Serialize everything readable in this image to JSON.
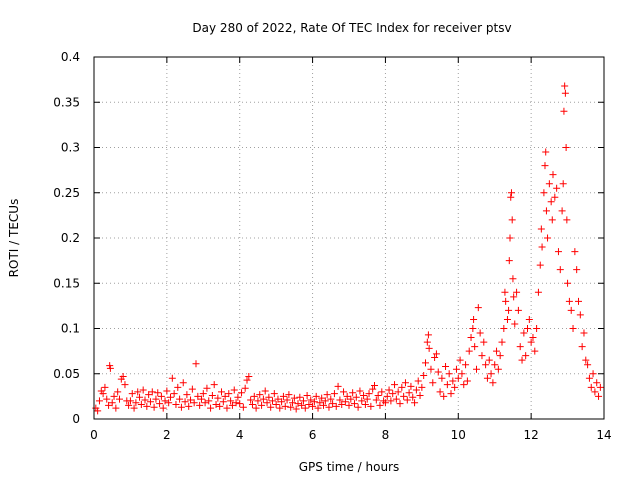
{
  "chart_data": {
    "type": "scatter",
    "title": "Day 280 of 2022, Rate Of TEC Index for receiver ptsv",
    "xlabel": "GPS time / hours",
    "ylabel": "ROTI / TECUs",
    "xlim": [
      0,
      14
    ],
    "ylim": [
      0,
      0.4
    ],
    "x_ticks": [
      "0",
      "2",
      "4",
      "6",
      "8",
      "10",
      "12",
      "14"
    ],
    "y_ticks": [
      "0",
      "0.05",
      "0.1",
      "0.15",
      "0.2",
      "0.25",
      "0.3",
      "0.35",
      "0.4"
    ],
    "grid": true,
    "legend": "none",
    "marker": "plus",
    "color": "#ff0000",
    "series": [
      {
        "points": [
          [
            0.05,
            0.012
          ],
          [
            0.1,
            0.009
          ],
          [
            0.15,
            0.02
          ],
          [
            0.2,
            0.031
          ],
          [
            0.25,
            0.028
          ],
          [
            0.3,
            0.035
          ],
          [
            0.35,
            0.022
          ],
          [
            0.4,
            0.015
          ],
          [
            0.43,
            0.059
          ],
          [
            0.45,
            0.056
          ],
          [
            0.5,
            0.018
          ],
          [
            0.55,
            0.025
          ],
          [
            0.6,
            0.012
          ],
          [
            0.65,
            0.03
          ],
          [
            0.7,
            0.022
          ],
          [
            0.75,
            0.044
          ],
          [
            0.8,
            0.047
          ],
          [
            0.85,
            0.038
          ],
          [
            0.9,
            0.02
          ],
          [
            0.95,
            0.015
          ],
          [
            1.0,
            0.02
          ],
          [
            1.05,
            0.028
          ],
          [
            1.1,
            0.012
          ],
          [
            1.15,
            0.018
          ],
          [
            1.2,
            0.03
          ],
          [
            1.25,
            0.024
          ],
          [
            1.3,
            0.016
          ],
          [
            1.35,
            0.032
          ],
          [
            1.4,
            0.021
          ],
          [
            1.45,
            0.014
          ],
          [
            1.5,
            0.027
          ],
          [
            1.55,
            0.019
          ],
          [
            1.6,
            0.03
          ],
          [
            1.65,
            0.013
          ],
          [
            1.7,
            0.022
          ],
          [
            1.75,
            0.029
          ],
          [
            1.8,
            0.017
          ],
          [
            1.85,
            0.025
          ],
          [
            1.9,
            0.012
          ],
          [
            1.95,
            0.02
          ],
          [
            2.0,
            0.031
          ],
          [
            2.05,
            0.018
          ],
          [
            2.1,
            0.024
          ],
          [
            2.15,
            0.045
          ],
          [
            2.2,
            0.028
          ],
          [
            2.25,
            0.016
          ],
          [
            2.3,
            0.035
          ],
          [
            2.35,
            0.022
          ],
          [
            2.4,
            0.013
          ],
          [
            2.45,
            0.04
          ],
          [
            2.5,
            0.019
          ],
          [
            2.55,
            0.027
          ],
          [
            2.6,
            0.014
          ],
          [
            2.65,
            0.021
          ],
          [
            2.7,
            0.033
          ],
          [
            2.75,
            0.018
          ],
          [
            2.8,
            0.061
          ],
          [
            2.85,
            0.025
          ],
          [
            2.9,
            0.015
          ],
          [
            2.95,
            0.022
          ],
          [
            3.0,
            0.028
          ],
          [
            3.05,
            0.018
          ],
          [
            3.1,
            0.034
          ],
          [
            3.15,
            0.02
          ],
          [
            3.2,
            0.012
          ],
          [
            3.25,
            0.026
          ],
          [
            3.3,
            0.038
          ],
          [
            3.35,
            0.016
          ],
          [
            3.4,
            0.023
          ],
          [
            3.45,
            0.014
          ],
          [
            3.5,
            0.03
          ],
          [
            3.55,
            0.019
          ],
          [
            3.6,
            0.025
          ],
          [
            3.65,
            0.012
          ],
          [
            3.7,
            0.028
          ],
          [
            3.75,
            0.02
          ],
          [
            3.8,
            0.015
          ],
          [
            3.85,
            0.032
          ],
          [
            3.9,
            0.018
          ],
          [
            3.95,
            0.024
          ],
          [
            4.0,
            0.017
          ],
          [
            4.05,
            0.029
          ],
          [
            4.1,
            0.013
          ],
          [
            4.15,
            0.034
          ],
          [
            4.2,
            0.043
          ],
          [
            4.25,
            0.047
          ],
          [
            4.3,
            0.021
          ],
          [
            4.35,
            0.016
          ],
          [
            4.4,
            0.025
          ],
          [
            4.45,
            0.012
          ],
          [
            4.5,
            0.02
          ],
          [
            4.55,
            0.027
          ],
          [
            4.6,
            0.015
          ],
          [
            4.65,
            0.022
          ],
          [
            4.7,
            0.031
          ],
          [
            4.75,
            0.018
          ],
          [
            4.8,
            0.024
          ],
          [
            4.85,
            0.013
          ],
          [
            4.9,
            0.02
          ],
          [
            4.95,
            0.028
          ],
          [
            5.0,
            0.016
          ],
          [
            5.05,
            0.022
          ],
          [
            5.1,
            0.012
          ],
          [
            5.15,
            0.019
          ],
          [
            5.2,
            0.025
          ],
          [
            5.25,
            0.014
          ],
          [
            5.3,
            0.021
          ],
          [
            5.35,
            0.027
          ],
          [
            5.4,
            0.013
          ],
          [
            5.45,
            0.018
          ],
          [
            5.5,
            0.023
          ],
          [
            5.55,
            0.011
          ],
          [
            5.6,
            0.017
          ],
          [
            5.65,
            0.024
          ],
          [
            5.7,
            0.015
          ],
          [
            5.75,
            0.02
          ],
          [
            5.8,
            0.012
          ],
          [
            5.85,
            0.026
          ],
          [
            5.9,
            0.016
          ],
          [
            5.95,
            0.021
          ],
          [
            6.0,
            0.014
          ],
          [
            6.05,
            0.019
          ],
          [
            6.1,
            0.025
          ],
          [
            6.15,
            0.012
          ],
          [
            6.2,
            0.018
          ],
          [
            6.25,
            0.023
          ],
          [
            6.3,
            0.015
          ],
          [
            6.35,
            0.02
          ],
          [
            6.4,
            0.027
          ],
          [
            6.45,
            0.013
          ],
          [
            6.5,
            0.022
          ],
          [
            6.55,
            0.017
          ],
          [
            6.6,
            0.028
          ],
          [
            6.65,
            0.014
          ],
          [
            6.7,
            0.036
          ],
          [
            6.75,
            0.021
          ],
          [
            6.8,
            0.016
          ],
          [
            6.85,
            0.03
          ],
          [
            6.9,
            0.019
          ],
          [
            6.95,
            0.025
          ],
          [
            7.0,
            0.015
          ],
          [
            7.05,
            0.022
          ],
          [
            7.1,
            0.029
          ],
          [
            7.15,
            0.017
          ],
          [
            7.2,
            0.024
          ],
          [
            7.25,
            0.013
          ],
          [
            7.3,
            0.031
          ],
          [
            7.35,
            0.02
          ],
          [
            7.4,
            0.026
          ],
          [
            7.45,
            0.016
          ],
          [
            7.5,
            0.022
          ],
          [
            7.55,
            0.028
          ],
          [
            7.6,
            0.014
          ],
          [
            7.65,
            0.033
          ],
          [
            7.7,
            0.037
          ],
          [
            7.75,
            0.021
          ],
          [
            7.8,
            0.026
          ],
          [
            7.85,
            0.015
          ],
          [
            7.9,
            0.03
          ],
          [
            7.95,
            0.02
          ],
          [
            8.0,
            0.018
          ],
          [
            8.05,
            0.025
          ],
          [
            8.1,
            0.032
          ],
          [
            8.15,
            0.02
          ],
          [
            8.2,
            0.028
          ],
          [
            8.25,
            0.038
          ],
          [
            8.3,
            0.022
          ],
          [
            8.35,
            0.03
          ],
          [
            8.4,
            0.017
          ],
          [
            8.45,
            0.035
          ],
          [
            8.5,
            0.025
          ],
          [
            8.55,
            0.04
          ],
          [
            8.6,
            0.021
          ],
          [
            8.65,
            0.029
          ],
          [
            8.7,
            0.036
          ],
          [
            8.75,
            0.024
          ],
          [
            8.8,
            0.018
          ],
          [
            8.85,
            0.032
          ],
          [
            8.9,
            0.042
          ],
          [
            8.95,
            0.026
          ],
          [
            9.0,
            0.035
          ],
          [
            9.05,
            0.048
          ],
          [
            9.1,
            0.062
          ],
          [
            9.15,
            0.085
          ],
          [
            9.18,
            0.093
          ],
          [
            9.2,
            0.078
          ],
          [
            9.25,
            0.055
          ],
          [
            9.3,
            0.04
          ],
          [
            9.35,
            0.068
          ],
          [
            9.4,
            0.072
          ],
          [
            9.45,
            0.052
          ],
          [
            9.5,
            0.03
          ],
          [
            9.55,
            0.045
          ],
          [
            9.6,
            0.025
          ],
          [
            9.65,
            0.058
          ],
          [
            9.7,
            0.038
          ],
          [
            9.75,
            0.05
          ],
          [
            9.8,
            0.028
          ],
          [
            9.85,
            0.042
          ],
          [
            9.9,
            0.035
          ],
          [
            9.95,
            0.055
          ],
          [
            10.0,
            0.045
          ],
          [
            10.05,
            0.065
          ],
          [
            10.1,
            0.05
          ],
          [
            10.15,
            0.038
          ],
          [
            10.2,
            0.06
          ],
          [
            10.25,
            0.042
          ],
          [
            10.3,
            0.075
          ],
          [
            10.35,
            0.09
          ],
          [
            10.4,
            0.1
          ],
          [
            10.42,
            0.11
          ],
          [
            10.45,
            0.08
          ],
          [
            10.5,
            0.055
          ],
          [
            10.55,
            0.123
          ],
          [
            10.6,
            0.095
          ],
          [
            10.65,
            0.07
          ],
          [
            10.7,
            0.085
          ],
          [
            10.75,
            0.06
          ],
          [
            10.8,
            0.045
          ],
          [
            10.85,
            0.065
          ],
          [
            10.9,
            0.05
          ],
          [
            10.95,
            0.04
          ],
          [
            11.0,
            0.06
          ],
          [
            11.05,
            0.075
          ],
          [
            11.1,
            0.055
          ],
          [
            11.15,
            0.07
          ],
          [
            11.2,
            0.085
          ],
          [
            11.25,
            0.1
          ],
          [
            11.28,
            0.14
          ],
          [
            11.3,
            0.13
          ],
          [
            11.35,
            0.11
          ],
          [
            11.38,
            0.12
          ],
          [
            11.4,
            0.175
          ],
          [
            11.42,
            0.2
          ],
          [
            11.44,
            0.245
          ],
          [
            11.46,
            0.25
          ],
          [
            11.48,
            0.22
          ],
          [
            11.5,
            0.155
          ],
          [
            11.52,
            0.135
          ],
          [
            11.55,
            0.105
          ],
          [
            11.6,
            0.14
          ],
          [
            11.65,
            0.12
          ],
          [
            11.7,
            0.08
          ],
          [
            11.75,
            0.065
          ],
          [
            11.8,
            0.095
          ],
          [
            11.85,
            0.07
          ],
          [
            11.9,
            0.1
          ],
          [
            11.95,
            0.11
          ],
          [
            12.0,
            0.085
          ],
          [
            12.05,
            0.09
          ],
          [
            12.1,
            0.075
          ],
          [
            12.15,
            0.1
          ],
          [
            12.2,
            0.14
          ],
          [
            12.25,
            0.17
          ],
          [
            12.28,
            0.21
          ],
          [
            12.3,
            0.19
          ],
          [
            12.35,
            0.25
          ],
          [
            12.38,
            0.28
          ],
          [
            12.4,
            0.295
          ],
          [
            12.42,
            0.23
          ],
          [
            12.45,
            0.2
          ],
          [
            12.5,
            0.26
          ],
          [
            12.55,
            0.24
          ],
          [
            12.58,
            0.22
          ],
          [
            12.6,
            0.27
          ],
          [
            12.65,
            0.245
          ],
          [
            12.7,
            0.255
          ],
          [
            12.75,
            0.185
          ],
          [
            12.8,
            0.165
          ],
          [
            12.85,
            0.23
          ],
          [
            12.88,
            0.26
          ],
          [
            12.9,
            0.34
          ],
          [
            12.92,
            0.368
          ],
          [
            12.94,
            0.36
          ],
          [
            12.96,
            0.3
          ],
          [
            12.98,
            0.22
          ],
          [
            13.0,
            0.15
          ],
          [
            13.05,
            0.13
          ],
          [
            13.1,
            0.12
          ],
          [
            13.15,
            0.1
          ],
          [
            13.2,
            0.185
          ],
          [
            13.25,
            0.165
          ],
          [
            13.3,
            0.13
          ],
          [
            13.35,
            0.115
          ],
          [
            13.4,
            0.08
          ],
          [
            13.45,
            0.095
          ],
          [
            13.5,
            0.065
          ],
          [
            13.55,
            0.06
          ],
          [
            13.6,
            0.045
          ],
          [
            13.65,
            0.035
          ],
          [
            13.7,
            0.05
          ],
          [
            13.75,
            0.03
          ],
          [
            13.8,
            0.04
          ],
          [
            13.85,
            0.025
          ],
          [
            13.9,
            0.035
          ]
        ]
      }
    ]
  }
}
